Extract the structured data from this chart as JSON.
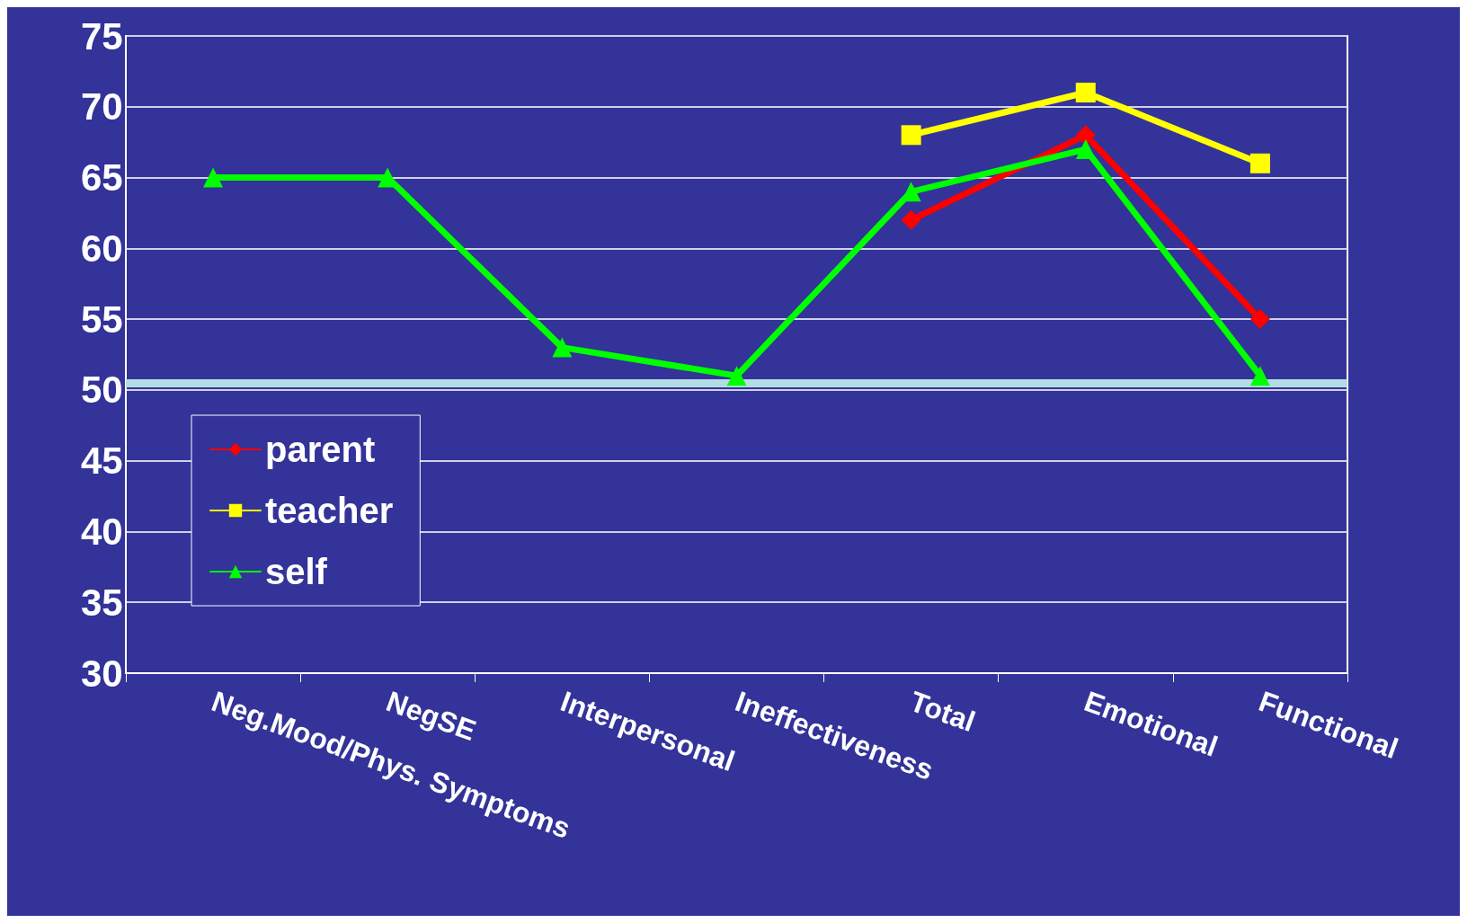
{
  "chart_data": {
    "type": "line",
    "categories": [
      "Neg.Mood/Phys. Symptoms",
      "NegSE",
      "Interpersonal",
      "Ineffectiveness",
      "Total",
      "Emotional",
      "Functional"
    ],
    "series": [
      {
        "name": "parent",
        "color": "#ff0000",
        "marker": "diamond",
        "values": [
          null,
          null,
          null,
          null,
          62,
          68,
          55
        ]
      },
      {
        "name": "teacher",
        "color": "#ffff00",
        "marker": "square",
        "values": [
          null,
          null,
          null,
          null,
          68,
          71,
          66
        ]
      },
      {
        "name": "self",
        "color": "#00ff00",
        "marker": "triangle",
        "values": [
          65,
          65,
          53,
          51,
          64,
          67,
          51
        ]
      }
    ],
    "ylim": [
      30,
      75
    ],
    "yticks": [
      30,
      35,
      40,
      45,
      50,
      55,
      60,
      65,
      70,
      75
    ],
    "ref_lines": [
      {
        "axis": "y",
        "value": 50.5,
        "color": "#b4dce4"
      }
    ],
    "grid": "y",
    "legend": "bottom left",
    "line_style": "solid"
  }
}
